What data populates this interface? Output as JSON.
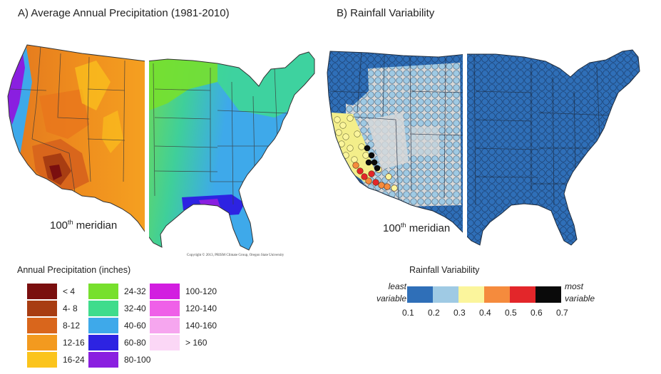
{
  "panels": {
    "a_title": "A) Average Annual Precipitation (1981-2010)",
    "b_title": "B) Rainfall Variability",
    "meridian_a": {
      "num": "100",
      "sup": "th",
      "word": " meridian"
    },
    "meridian_b": {
      "num": "100",
      "sup": "th",
      "word": " meridian"
    },
    "copyright": "Copyright © 2013, PRISM Climate Group, Oregon State University"
  },
  "precip_legend": {
    "title": "Annual Precipitation (inches)",
    "items": [
      {
        "label": "< 4",
        "color": "#7a0f0f"
      },
      {
        "label": "4- 8",
        "color": "#a83d12"
      },
      {
        "label": "8-12",
        "color": "#d9661c"
      },
      {
        "label": "12-16",
        "color": "#f39a1f"
      },
      {
        "label": "16-24",
        "color": "#fbc41c"
      },
      {
        "label": "24-32",
        "color": "#77e02d"
      },
      {
        "label": "32-40",
        "color": "#3fdc8c"
      },
      {
        "label": "40-60",
        "color": "#3ea9ea"
      },
      {
        "label": "60-80",
        "color": "#2d23e2"
      },
      {
        "label": "80-100",
        "color": "#8a1fe0"
      },
      {
        "label": "100-120",
        "color": "#d21ee0"
      },
      {
        "label": "120-140",
        "color": "#ef60e8"
      },
      {
        "label": "140-160",
        "color": "#f6a6ef"
      },
      {
        "label": "> 160",
        "color": "#fbd7f6"
      }
    ]
  },
  "variability_legend": {
    "title": "Rainfall Variability",
    "least_label": "least variable",
    "most_label": "most variable",
    "colors": [
      "#2f6fb8",
      "#9fcae4",
      "#fbf59c",
      "#f58b3d",
      "#e3262a",
      "#0a0a0a"
    ],
    "ticks": [
      "0.1",
      "0.2",
      "0.3",
      "0.4",
      "0.5",
      "0.6",
      "0.7"
    ]
  }
}
